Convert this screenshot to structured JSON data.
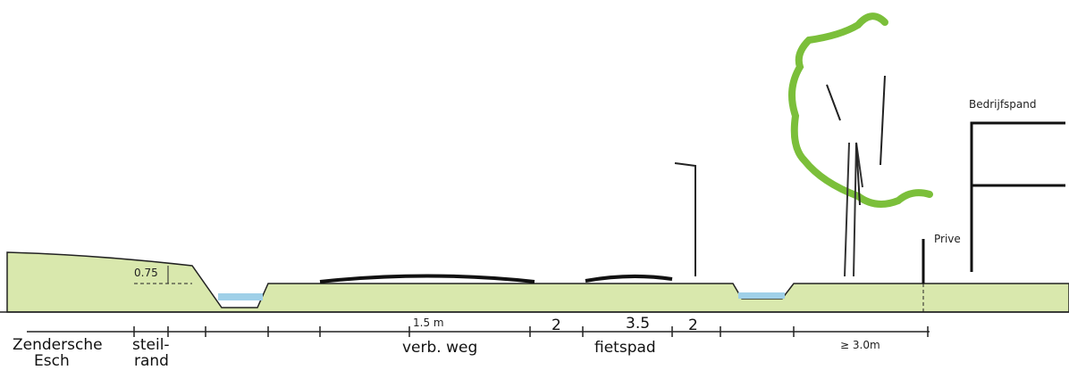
{
  "annotations": {
    "height": "0.75",
    "bedrijfspand": "Bedrijfspand",
    "prive": "Prive",
    "width_road": "1.5 m",
    "width_left": "2",
    "width_path": "3.5",
    "width_right": "2",
    "width_verge": "≥ 3.0m"
  },
  "zones": [
    {
      "lines": [
        "Zendersche",
        "Esch"
      ]
    },
    {
      "lines": [
        "steil-",
        "rand"
      ]
    },
    {
      "lines": [
        "verb. weg"
      ]
    },
    {
      "lines": [
        "fietspad"
      ]
    }
  ]
}
